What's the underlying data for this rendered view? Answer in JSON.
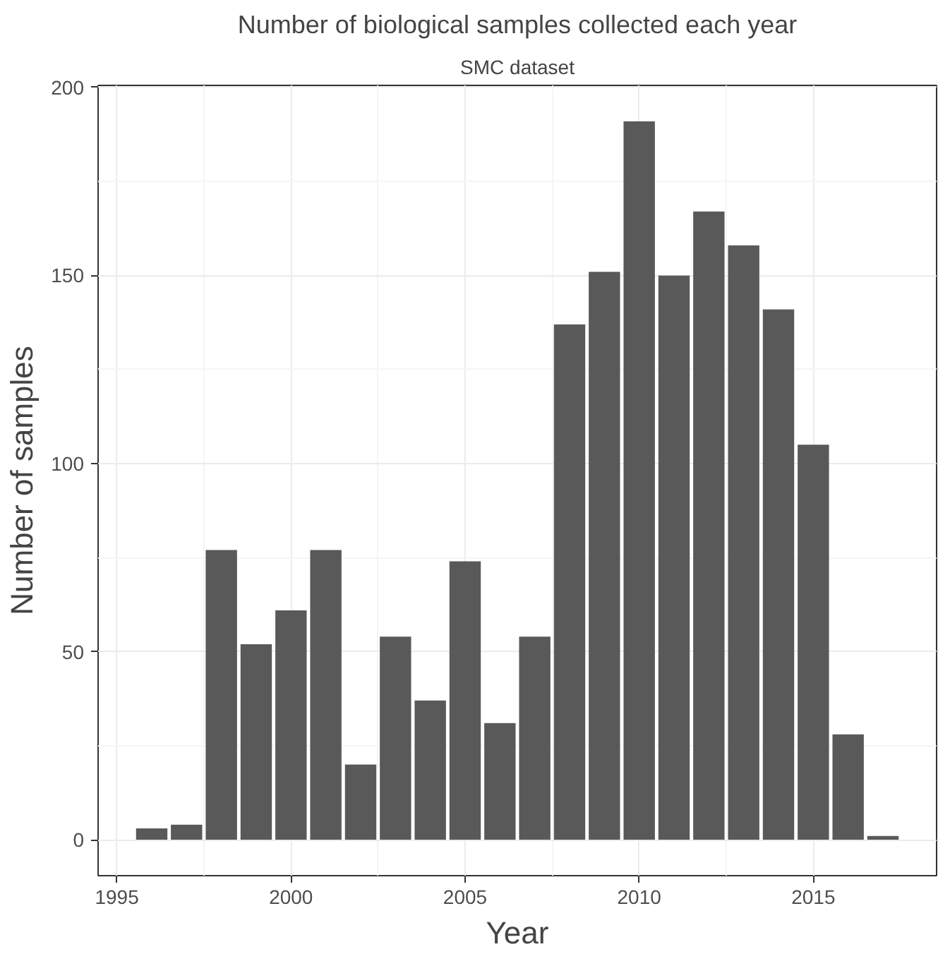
{
  "chart_data": {
    "type": "bar",
    "title": "Number of biological samples collected each year",
    "subtitle": "SMC dataset",
    "xlabel": "Year",
    "ylabel": "Number of samples",
    "x": [
      1996,
      1997,
      1998,
      1999,
      2000,
      2001,
      2002,
      2003,
      2004,
      2005,
      2006,
      2007,
      2008,
      2009,
      2010,
      2011,
      2012,
      2013,
      2014,
      2015,
      2016,
      2017
    ],
    "values": [
      3,
      4,
      77,
      52,
      61,
      77,
      20,
      54,
      37,
      74,
      31,
      54,
      137,
      151,
      191,
      150,
      167,
      158,
      141,
      105,
      28,
      1
    ],
    "color": "#595959",
    "xlim": [
      1994.46,
      2018.54
    ],
    "ylim": [
      -9.55,
      200.55
    ],
    "xticks": [
      1995,
      2000,
      2005,
      2010,
      2015
    ],
    "yticks": [
      0,
      50,
      100,
      150,
      200
    ],
    "grid": true
  }
}
